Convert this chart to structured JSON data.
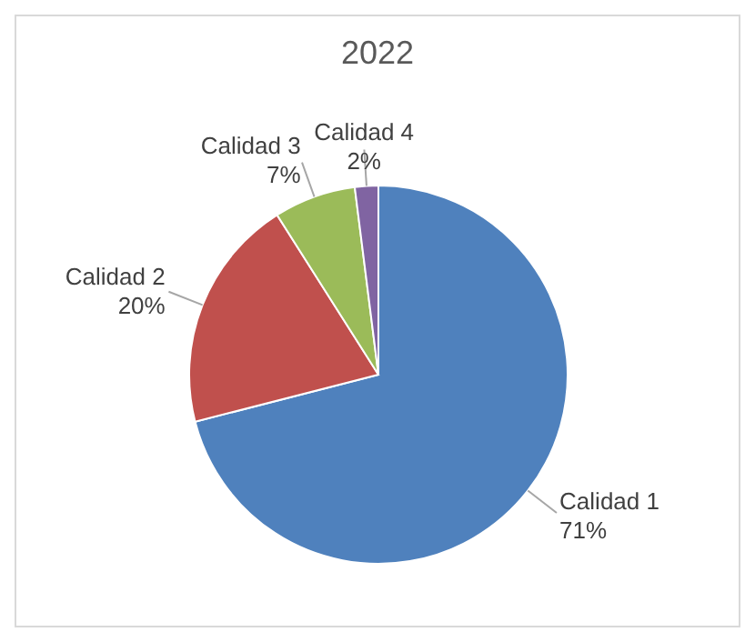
{
  "chart_data": {
    "type": "pie",
    "title": "2022",
    "categories": [
      "Calidad 1",
      "Calidad 2",
      "Calidad 3",
      "Calidad 4"
    ],
    "values": [
      71,
      20,
      7,
      2
    ],
    "colors": [
      "#4f81bd",
      "#c0504d",
      "#9bbb59",
      "#8064a2"
    ],
    "value_labels": [
      "71%",
      "20%",
      "7%",
      "2%"
    ],
    "legend": false
  }
}
